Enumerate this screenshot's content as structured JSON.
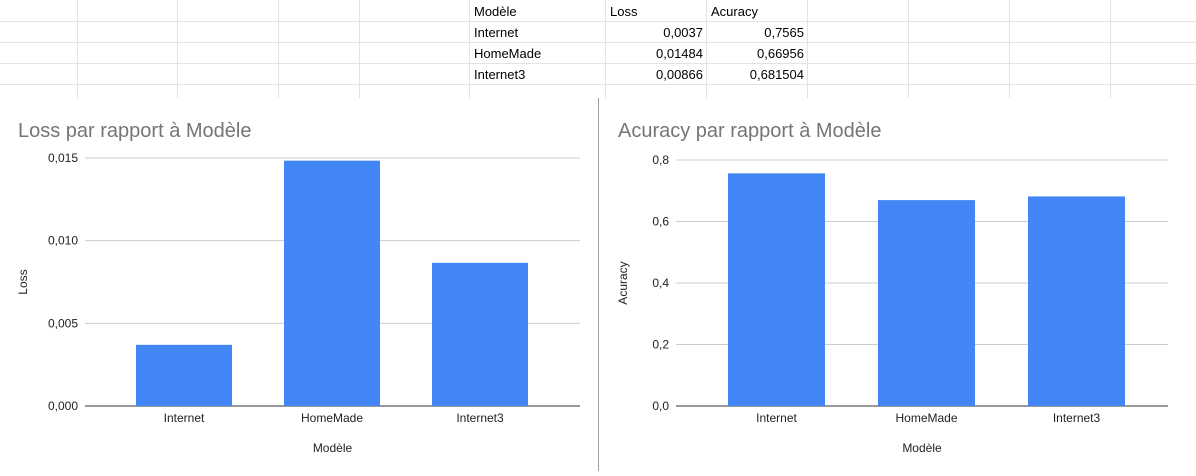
{
  "sheet": {
    "headers": [
      "Modèle",
      "Loss",
      "Acuracy"
    ],
    "rows": [
      [
        "Internet",
        "0,0037",
        "0,7565"
      ],
      [
        "HomeMade",
        "0,01484",
        "0,66956"
      ],
      [
        "Internet3",
        "0,00866",
        "0,681504"
      ]
    ]
  },
  "chart_data": [
    {
      "type": "bar",
      "title": "Loss par rapport à Modèle",
      "xlabel": "Modèle",
      "ylabel": "Loss",
      "categories": [
        "Internet",
        "HomeMade",
        "Internet3"
      ],
      "values": [
        0.0037,
        0.01484,
        0.00866
      ],
      "ylim": [
        0,
        0.015
      ],
      "yticks": [
        "0,000",
        "0,005",
        "0,010",
        "0,015"
      ],
      "grid": true,
      "color": "#4285f4"
    },
    {
      "type": "bar",
      "title": "Acuracy par rapport à Modèle",
      "xlabel": "Modèle",
      "ylabel": "Acuracy",
      "categories": [
        "Internet",
        "HomeMade",
        "Internet3"
      ],
      "values": [
        0.7565,
        0.66956,
        0.681504
      ],
      "ylim": [
        0,
        0.8
      ],
      "yticks": [
        "0,0",
        "0,2",
        "0,4",
        "0,6",
        "0,8"
      ],
      "grid": true,
      "color": "#4285f4"
    }
  ]
}
